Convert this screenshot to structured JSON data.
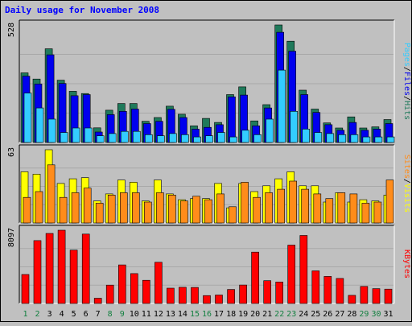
{
  "chart_data": {
    "type": "bar",
    "title": "Daily usage for November 2008",
    "colors": {
      "title": "#0000ff",
      "background": "#c0c0c0",
      "plot_bg": "#c0c0c0",
      "hits": "#1f7a5b",
      "files": "#0000ee",
      "pages": "#33ccff",
      "visits": "#ffff00",
      "sites": "#ff8c1a",
      "kbytes": "#ff0000",
      "weekday_label": "#000000",
      "weekend_label": "#138040"
    },
    "categories": [
      "1",
      "2",
      "3",
      "4",
      "5",
      "6",
      "7",
      "8",
      "9",
      "10",
      "11",
      "12",
      "13",
      "14",
      "15",
      "16",
      "17",
      "18",
      "19",
      "20",
      "21",
      "22",
      "23",
      "24",
      "25",
      "26",
      "27",
      "28",
      "29",
      "30",
      "31"
    ],
    "weekend_days": [
      "1",
      "2",
      "8",
      "9",
      "15",
      "16",
      "22",
      "23",
      "29",
      "30"
    ],
    "panels": [
      {
        "id": "hits-files-pages",
        "axis_max_label": "528",
        "ylim": [
          0,
          528
        ],
        "legend": [
          "Pages",
          "/",
          "Files",
          "/",
          "Hits"
        ],
        "series": [
          {
            "name": "Hits",
            "values": [
              313,
              285,
              421,
              280,
              230,
              220,
              66,
              145,
              175,
              175,
              95,
              112,
              163,
              127,
              75,
              108,
              90,
              215,
              250,
              97,
              170,
              528,
              455,
              235,
              150,
              88,
              65,
              115,
              65,
              70,
              103
            ]
          },
          {
            "name": "Files",
            "values": [
              298,
              263,
              394,
              265,
              210,
              215,
              47,
              125,
              140,
              150,
              85,
              95,
              149,
              112,
              60,
              68,
              80,
              205,
              213,
              75,
              155,
              495,
              410,
              215,
              135,
              80,
              55,
              90,
              55,
              60,
              85
            ]
          },
          {
            "name": "Pages",
            "values": [
              222,
              155,
              105,
              45,
              65,
              65,
              30,
              40,
              50,
              50,
              35,
              30,
              40,
              35,
              25,
              30,
              45,
              25,
              55,
              35,
              105,
              325,
              140,
              60,
              45,
              40,
              35,
              35,
              25,
              25,
              25
            ]
          }
        ]
      },
      {
        "id": "visits-sites",
        "axis_max_label": "63",
        "ylim": [
          0,
          63
        ],
        "legend": [
          "Sites",
          "/",
          "Visits"
        ],
        "series": [
          {
            "name": "Visits",
            "values": [
              44,
              42,
              63,
              34,
              38,
              39,
              19,
              25,
              37,
              35,
              19,
              37,
              25,
              20,
              21,
              21,
              34,
              13,
              34,
              27,
              32,
              38,
              44,
              32,
              32,
              18,
              26,
              18,
              20,
              19,
              24
            ]
          },
          {
            "name": "Sites",
            "values": [
              22,
              27,
              50,
              22,
              26,
              30,
              17,
              24,
              26,
              26,
              18,
              26,
              24,
              19,
              23,
              20,
              25,
              14,
              35,
              22,
              26,
              29,
              36,
              29,
              25,
              21,
              26,
              25,
              17,
              18,
              37
            ]
          }
        ]
      },
      {
        "id": "kbytes",
        "axis_max_label": "8097",
        "ylim": [
          0,
          8097
        ],
        "legend": [
          "KBytes"
        ],
        "series": [
          {
            "name": "KBytes",
            "values": [
              3200,
              6950,
              7740,
              8097,
              5900,
              7670,
              580,
              2030,
              4260,
              3300,
              2560,
              4560,
              1690,
              1790,
              1770,
              870,
              930,
              1550,
              2040,
              5680,
              2520,
              2380,
              6450,
              7520,
              3600,
              2990,
              2770,
              900,
              1890,
              1640,
              1580
            ]
          }
        ]
      }
    ]
  }
}
